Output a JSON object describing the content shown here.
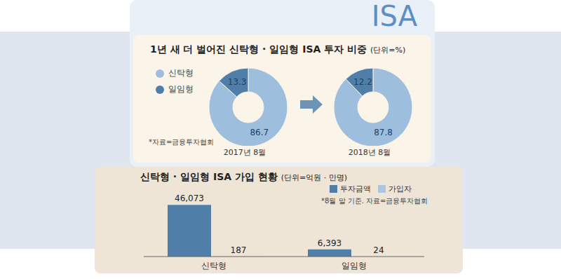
{
  "header": "ISA",
  "chart_data": [
    {
      "type": "pie",
      "title": "1년 새 더 벌어진 신탁형 · 일임형 ISA 투자 비중",
      "subtitle": "(단위=%)",
      "x_label": "2017년 8월",
      "categories": [
        "신탁형",
        "일임형"
      ],
      "values": [
        86.7,
        13.3
      ],
      "colors": [
        "#9dbedd",
        "#4f7fa8"
      ],
      "data_labels": true,
      "legend": "left",
      "annotations": [
        "*자료=금융투자협회"
      ]
    },
    {
      "type": "pie",
      "x_label": "2018년 8월",
      "categories": [
        "신탁형",
        "일임형"
      ],
      "values": [
        87.8,
        12.2
      ],
      "colors": [
        "#9dbedd",
        "#4f7fa8"
      ],
      "data_labels": true
    },
    {
      "type": "bar",
      "title": "신탁형 · 일임형 ISA 가입 현황",
      "subtitle": "(단위=억원 · 만명)",
      "categories": [
        "신탁형",
        "일임형"
      ],
      "series": [
        {
          "name": "투자금액",
          "color": "#4f7fa8",
          "values": [
            46073,
            6393
          ],
          "value_labels": [
            "46,073",
            "6,393"
          ]
        },
        {
          "name": "가입자",
          "color": "#a9c7e3",
          "values": [
            187,
            24
          ]
        }
      ],
      "ylim": [
        0,
        50000
      ],
      "tick_labels": "x",
      "data_labels": true,
      "legend": "top-right",
      "annotations": [
        "*8월 말 기준. 자료=금융투자협회"
      ]
    }
  ]
}
